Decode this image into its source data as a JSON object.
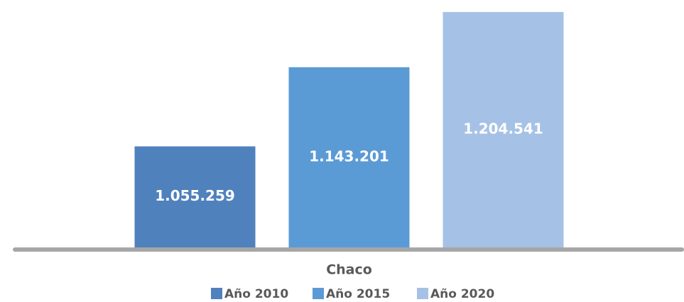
{
  "chart_data": {
    "type": "bar",
    "categories": [
      "Chaco"
    ],
    "series": [
      {
        "name": "Año 2010",
        "color": "#4f81bd",
        "values": [
          1055259
        ],
        "value_labels": [
          "1.055.259"
        ]
      },
      {
        "name": "Año 2015",
        "color": "#5b9bd5",
        "values": [
          1143201
        ],
        "value_labels": [
          "1.143.201"
        ]
      },
      {
        "name": "Año 2020",
        "color": "#a5c2e6",
        "values": [
          1204541
        ],
        "value_labels": [
          "1.204.541"
        ]
      }
    ],
    "ylim": [
      943000,
      1210000
    ],
    "legend": "bottom"
  }
}
